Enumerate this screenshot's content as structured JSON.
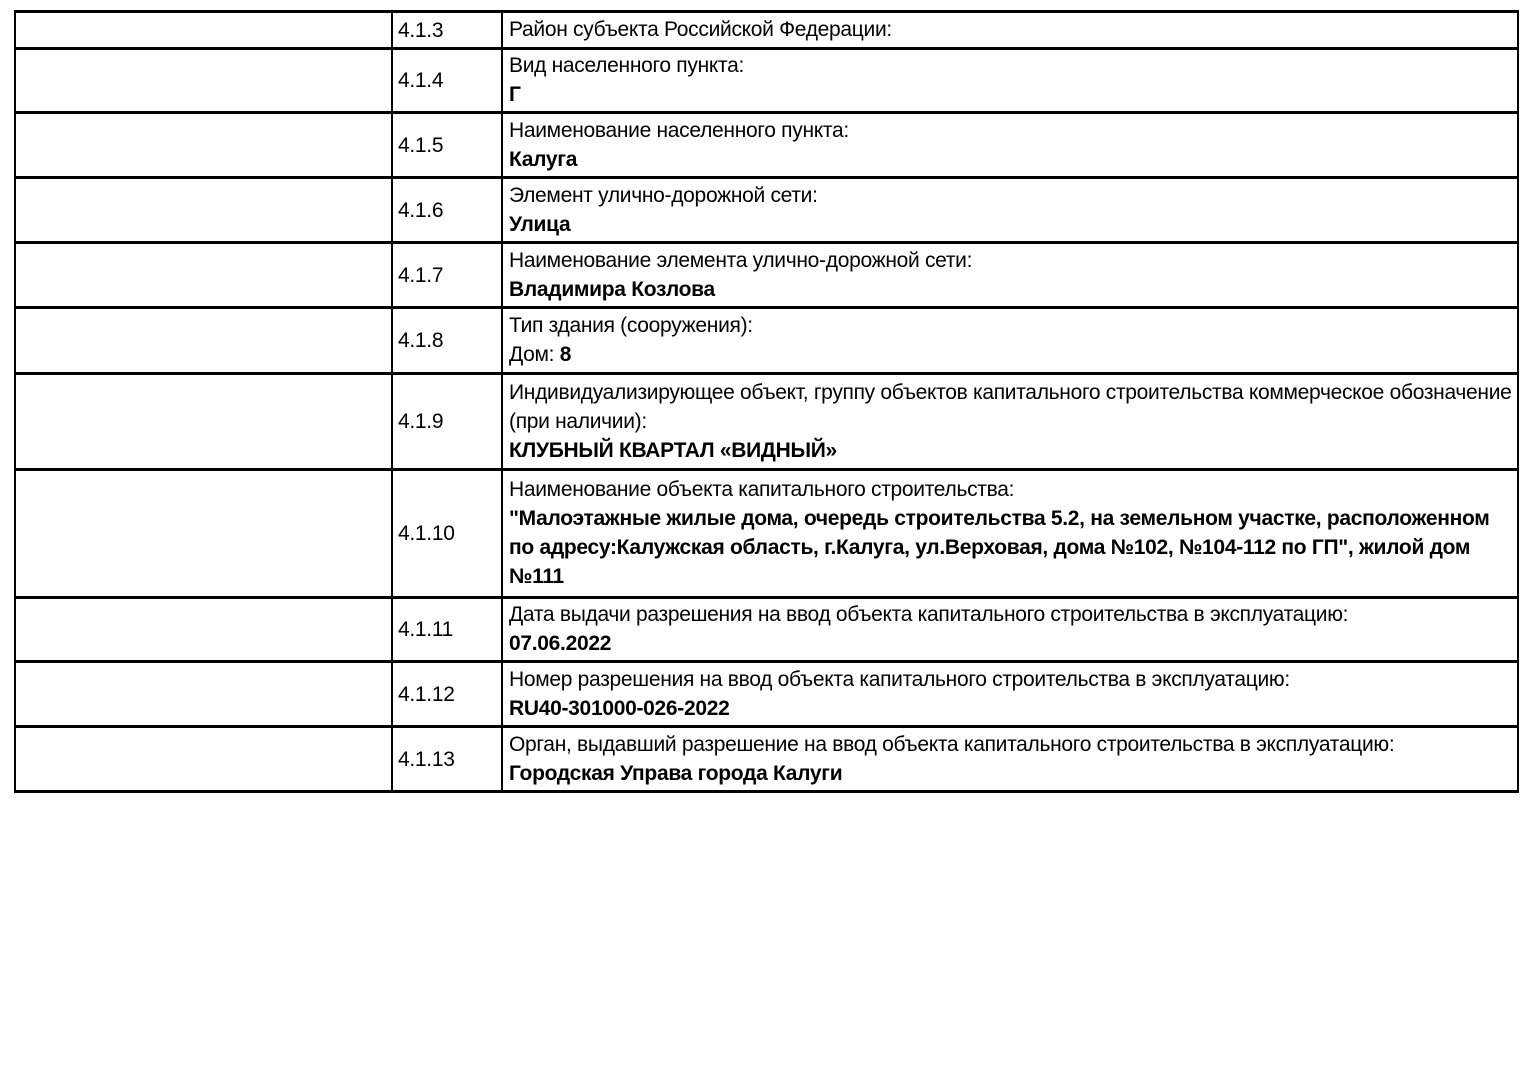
{
  "page": {
    "background_color": "#ffffff",
    "text_color": "#000000",
    "border_color": "#000000"
  },
  "table": {
    "rows": [
      {
        "num": "4.1.3",
        "label": "Район субъекта Российской Федерации:",
        "value_prefix": "",
        "value": ""
      },
      {
        "num": "4.1.4",
        "label": "Вид населенного пункта:",
        "value_prefix": "",
        "value": "Г"
      },
      {
        "num": "4.1.5",
        "label": "Наименование населенного пункта:",
        "value_prefix": "",
        "value": "Калуга"
      },
      {
        "num": "4.1.6",
        "label": "Элемент улично-дорожной сети:",
        "value_prefix": "",
        "value": "Улица"
      },
      {
        "num": "4.1.7",
        "label": "Наименование элемента улично-дорожной сети:",
        "value_prefix": "",
        "value": "Владимира Козлова"
      },
      {
        "num": "4.1.8",
        "label": "Тип здания (сооружения):",
        "value_prefix": "Дом: ",
        "value": "8"
      },
      {
        "num": "4.1.9",
        "label": "Индивидуализирующее объект, группу объектов капитального строительства коммерческое обозначение (при наличии):",
        "value_prefix": "",
        "value": "КЛУБНЫЙ КВАРТАЛ «ВИДНЫЙ»"
      },
      {
        "num": "4.1.10",
        "label": "Наименование объекта капитального строительства:",
        "value_prefix": "",
        "value": "\"Малоэтажные жилые дома, очередь строительства 5.2, на земельном участке, расположенном по адресу:Калужская область, г.Калуга, ул.Верховая, дома №102, №104-112 по ГП\", жилой дом №111"
      },
      {
        "num": "4.1.11",
        "label": "Дата выдачи разрешения на ввод объекта капитального строительства в эксплуатацию:",
        "value_prefix": "",
        "value": "07.06.2022"
      },
      {
        "num": "4.1.12",
        "label": "Номер разрешения на ввод объекта капитального строительства в эксплуатацию:",
        "value_prefix": "",
        "value": "RU40-301000-026-2022"
      },
      {
        "num": "4.1.13",
        "label": "Орган, выдавший разрешение на ввод объекта капитального строительства в эксплуатацию:",
        "value_prefix": "",
        "value": "Городская Управа города Калуги"
      }
    ]
  }
}
